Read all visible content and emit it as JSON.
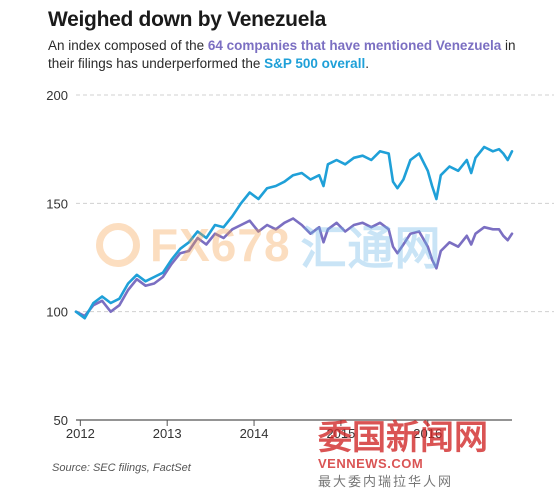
{
  "title": "Weighed down by Venezuela",
  "subtitle": {
    "p1": "An index composed of the ",
    "p2": "64 companies that have mentioned Venezuela",
    "p3": " in their filings has underperformed the ",
    "p4": "S&P 500 overall",
    "p5": "."
  },
  "source": "Source: SEC filings, FactSet",
  "watermark": {
    "left_a": "FX678",
    "left_b": "汇通网",
    "right_cn": "委国新闻网",
    "right_en": "VENNEWS.COM",
    "right_tag": "最大委内瑞拉华人网"
  },
  "colors": {
    "sp500": "#1fa0d8",
    "venezuela_index": "#7b6fc2",
    "grid": "#d0d0d0",
    "axis_text": "#333333"
  },
  "chart_data": {
    "type": "line",
    "title": "Weighed down by Venezuela",
    "xlabel": "",
    "ylabel": "",
    "xlim": [
      2011.95,
      2016.97
    ],
    "ylim": [
      50,
      200
    ],
    "yticks": [
      50,
      100,
      150,
      200
    ],
    "xticks": [
      2012,
      2013,
      2014,
      2015,
      2016
    ],
    "xtick_labels": [
      "2012",
      "2013",
      "2014",
      "2015",
      "2016"
    ],
    "grid": "horizontal dashed",
    "series": [
      {
        "name": "S&P 500 overall",
        "x": [
          2011.95,
          2012.05,
          2012.15,
          2012.25,
          2012.35,
          2012.45,
          2012.55,
          2012.65,
          2012.75,
          2012.85,
          2012.95,
          2013.05,
          2013.15,
          2013.25,
          2013.35,
          2013.45,
          2013.55,
          2013.65,
          2013.75,
          2013.85,
          2013.95,
          2014.05,
          2014.15,
          2014.25,
          2014.35,
          2014.45,
          2014.55,
          2014.65,
          2014.75,
          2014.8,
          2014.85,
          2014.95,
          2015.05,
          2015.15,
          2015.25,
          2015.35,
          2015.45,
          2015.55,
          2015.6,
          2015.65,
          2015.72,
          2015.8,
          2015.9,
          2016.0,
          2016.05,
          2016.1,
          2016.15,
          2016.25,
          2016.35,
          2016.45,
          2016.5,
          2016.55,
          2016.65,
          2016.75,
          2016.82,
          2016.87,
          2016.92,
          2016.97
        ],
        "values": [
          100,
          97,
          104,
          107,
          104,
          106,
          113,
          117,
          114,
          116,
          118,
          124,
          129,
          132,
          137,
          134,
          140,
          139,
          144,
          150,
          155,
          152,
          157,
          158,
          160,
          163,
          164,
          161,
          163,
          158,
          168,
          170,
          168,
          171,
          172,
          170,
          174,
          173,
          160,
          157,
          161,
          170,
          173,
          165,
          158,
          152,
          163,
          167,
          165,
          170,
          164,
          171,
          176,
          174,
          175,
          173,
          170,
          174
        ]
      },
      {
        "name": "64 companies that have mentioned Venezuela",
        "x": [
          2011.95,
          2012.05,
          2012.15,
          2012.25,
          2012.35,
          2012.45,
          2012.55,
          2012.65,
          2012.75,
          2012.85,
          2012.95,
          2013.05,
          2013.15,
          2013.25,
          2013.35,
          2013.45,
          2013.55,
          2013.65,
          2013.75,
          2013.85,
          2013.95,
          2014.05,
          2014.15,
          2014.25,
          2014.35,
          2014.45,
          2014.55,
          2014.65,
          2014.75,
          2014.8,
          2014.85,
          2014.95,
          2015.05,
          2015.15,
          2015.25,
          2015.35,
          2015.45,
          2015.55,
          2015.6,
          2015.65,
          2015.72,
          2015.8,
          2015.9,
          2016.0,
          2016.05,
          2016.1,
          2016.15,
          2016.25,
          2016.35,
          2016.45,
          2016.5,
          2016.55,
          2016.65,
          2016.75,
          2016.82,
          2016.87,
          2016.92,
          2016.97
        ],
        "values": [
          100,
          98,
          103,
          105,
          100,
          103,
          110,
          115,
          112,
          113,
          116,
          122,
          127,
          128,
          134,
          131,
          136,
          134,
          138,
          140,
          142,
          137,
          140,
          138,
          141,
          143,
          140,
          136,
          139,
          132,
          138,
          141,
          137,
          140,
          141,
          139,
          141,
          138,
          130,
          127,
          131,
          136,
          137,
          130,
          124,
          120,
          128,
          132,
          130,
          135,
          131,
          136,
          139,
          138,
          138,
          135,
          133,
          136
        ]
      }
    ]
  }
}
